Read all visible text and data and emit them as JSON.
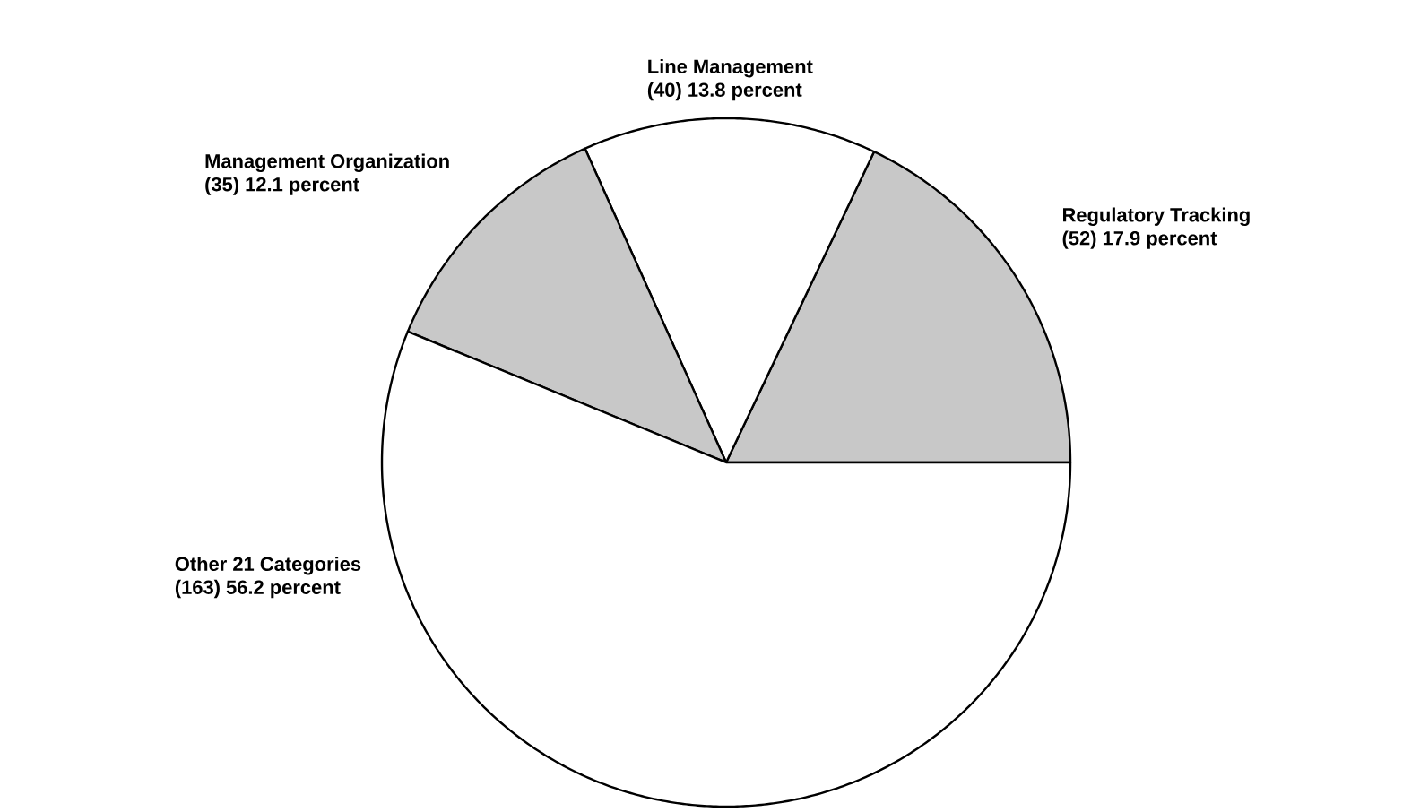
{
  "chart_data": {
    "type": "pie",
    "categories": [
      "Regulatory Tracking",
      "Line Management",
      "Management  Organization",
      "Other 21 Categories"
    ],
    "values": [
      52,
      40,
      35,
      163
    ],
    "value_labels": [
      "(52)  17.9 percent",
      "(40)  13.8 percent",
      "(35)  12.1 percent",
      "(163)  56.2 percent"
    ],
    "colors": [
      "#c8c8c8",
      "#ffffff",
      "#c8c8c8",
      "#ffffff"
    ]
  }
}
